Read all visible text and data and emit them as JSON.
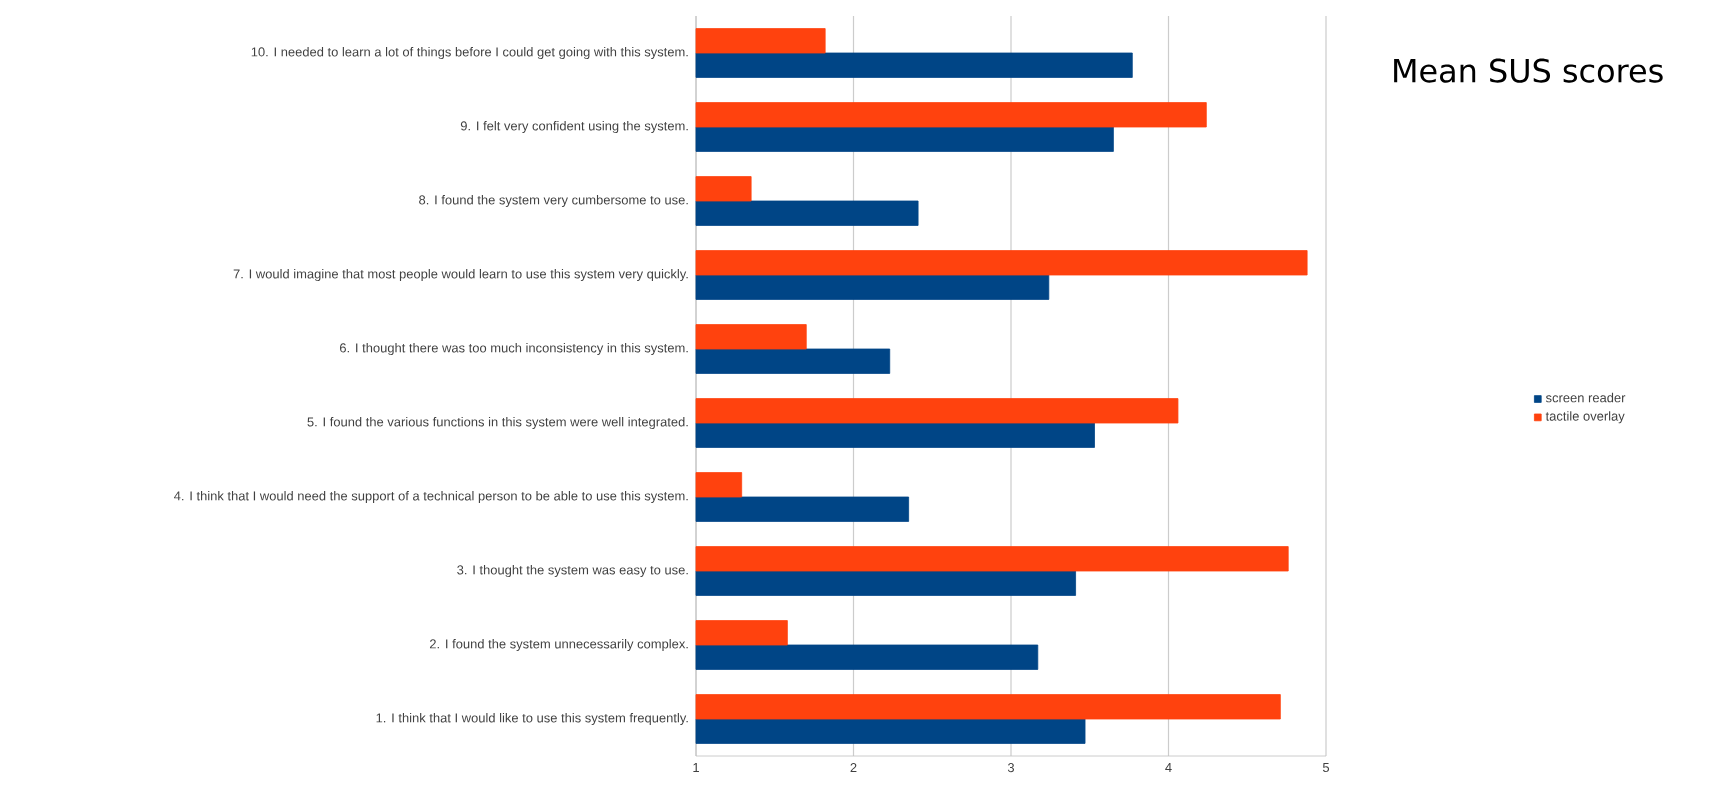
{
  "chart_data": {
    "type": "bar",
    "orientation": "horizontal",
    "title": "Mean SUS scores",
    "categories": [
      "10. I needed to learn a lot of things before I could get going with this system.",
      "9. I felt very confident using the system.",
      "8. I found the system very cumbersome to use.",
      "7. I would imagine that most people would learn to use this system very quickly.",
      "6. I thought there was too much inconsistency in this system.",
      "5. I found the various functions in this system were well integrated.",
      "4. I think that I would need the support of a technical person to be able to use this system.",
      "3. I thought the system was easy to use.",
      "2. I found the system unnecessarily complex.",
      "1. I think that I would like to use this system frequently."
    ],
    "series": [
      {
        "name": "screen reader",
        "color": "#004586",
        "values": [
          3.77,
          3.65,
          2.41,
          3.24,
          2.23,
          3.53,
          2.35,
          3.41,
          3.17,
          3.47
        ]
      },
      {
        "name": "tactile overlay",
        "color": "#ff420e",
        "values": [
          1.82,
          4.24,
          1.35,
          4.88,
          1.7,
          4.06,
          1.29,
          4.76,
          1.58,
          4.71
        ]
      }
    ],
    "xlim": [
      1,
      5
    ],
    "xticks": [
      1,
      2,
      3,
      4,
      5
    ],
    "grid": "x",
    "legend": "right"
  }
}
